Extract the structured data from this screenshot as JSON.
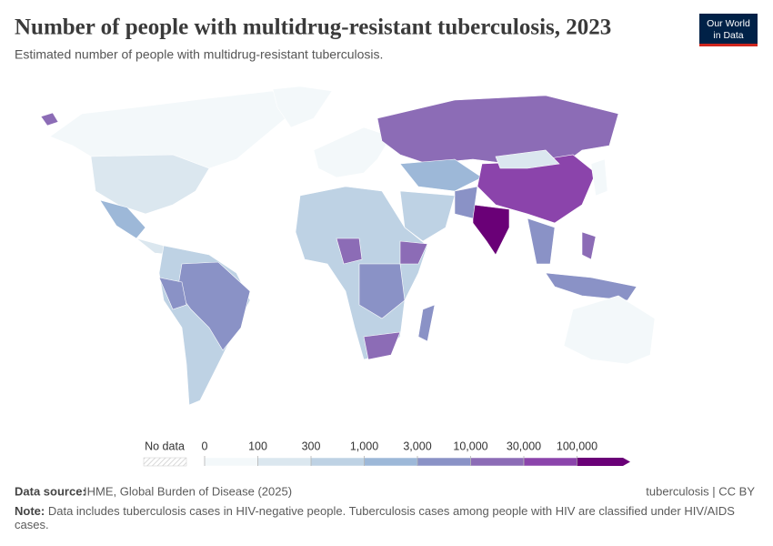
{
  "header": {
    "title": "Number of people with multidrug-resistant tuberculosis, 2023",
    "subtitle": "Estimated number of people with multidrug-resistant tuberculosis.",
    "logo": [
      "Our World",
      "in Data"
    ]
  },
  "legend": {
    "no_data": "No data",
    "ticks": [
      0,
      100,
      300,
      {
        "value": 1000,
        "label": "1,000"
      },
      {
        "value": 3000,
        "label": "3,000"
      },
      {
        "value": 10000,
        "label": "10,000"
      },
      {
        "value": 30000,
        "label": "30,000"
      },
      {
        "value": 100000,
        "label": "100,000"
      }
    ],
    "colors": [
      "#f3f8fa",
      "#dbe7ef",
      "#bed2e4",
      "#9db8d8",
      "#8a92c6",
      "#8c6cb6",
      "#8b44ab",
      "#6a0077"
    ]
  },
  "footer": {
    "source_label": "Data source:",
    "source": "IHME, Global Burden of Disease (2025)",
    "license": "tuberculosis | CC BY",
    "note_label": "Note:",
    "note": "Data includes tuberculosis cases in HIV-negative people. Tuberculosis cases among people with HIV are classified under HIV/AIDS cases."
  }
}
